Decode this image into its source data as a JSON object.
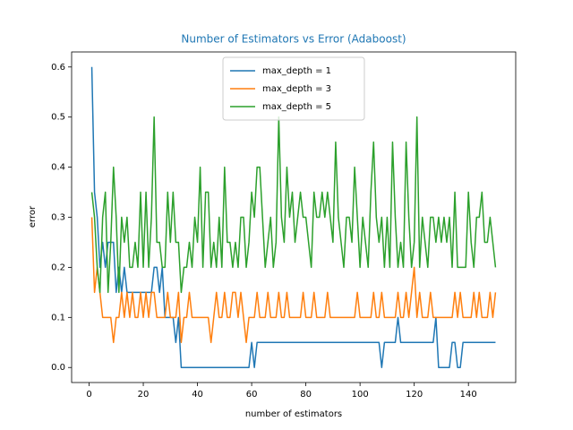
{
  "chart_data": {
    "type": "line",
    "title": "Number of Estimators vs Error (Adaboost)",
    "x_label": "number of estimators",
    "y_label": "error",
    "x": [
      1,
      2,
      3,
      4,
      5,
      6,
      7,
      8,
      9,
      10,
      11,
      12,
      13,
      14,
      15,
      16,
      17,
      18,
      19,
      20,
      21,
      22,
      23,
      24,
      25,
      26,
      27,
      28,
      29,
      30,
      31,
      32,
      33,
      34,
      35,
      36,
      37,
      38,
      39,
      40,
      41,
      42,
      43,
      44,
      45,
      46,
      47,
      48,
      49,
      50,
      51,
      52,
      53,
      54,
      55,
      56,
      57,
      58,
      59,
      60,
      61,
      62,
      63,
      64,
      65,
      66,
      67,
      68,
      69,
      70,
      71,
      72,
      73,
      74,
      75,
      76,
      77,
      78,
      79,
      80,
      81,
      82,
      83,
      84,
      85,
      86,
      87,
      88,
      89,
      90,
      91,
      92,
      93,
      94,
      95,
      96,
      97,
      98,
      99,
      100,
      101,
      102,
      103,
      104,
      105,
      106,
      107,
      108,
      109,
      110,
      111,
      112,
      113,
      114,
      115,
      116,
      117,
      118,
      119,
      120,
      121,
      122,
      123,
      124,
      125,
      126,
      127,
      128,
      129,
      130,
      131,
      132,
      133,
      134,
      135,
      136,
      137,
      138,
      139,
      140,
      141,
      142,
      143,
      144,
      145,
      146,
      147,
      148,
      149,
      150
    ],
    "series": [
      {
        "name": "max_depth = 1",
        "color": "#1f77b4",
        "values": [
          0.6,
          0.35,
          0.3,
          0.2,
          0.25,
          0.2,
          0.25,
          0.25,
          0.25,
          0.15,
          0.2,
          0.15,
          0.2,
          0.15,
          0.15,
          0.15,
          0.15,
          0.15,
          0.15,
          0.15,
          0.15,
          0.15,
          0.15,
          0.2,
          0.2,
          0.15,
          0.2,
          0.1,
          0.1,
          0.1,
          0.1,
          0.05,
          0.1,
          0,
          0,
          0,
          0,
          0,
          0,
          0,
          0,
          0,
          0,
          0,
          0,
          0,
          0,
          0,
          0,
          0,
          0,
          0,
          0,
          0,
          0,
          0,
          0,
          0,
          0,
          0.05,
          0,
          0.05,
          0.05,
          0.05,
          0.05,
          0.05,
          0.05,
          0.05,
          0.05,
          0.05,
          0.05,
          0.05,
          0.05,
          0.05,
          0.05,
          0.05,
          0.05,
          0.05,
          0.05,
          0.05,
          0.05,
          0.05,
          0.05,
          0.05,
          0.05,
          0.05,
          0.05,
          0.05,
          0.05,
          0.05,
          0.05,
          0.05,
          0.05,
          0.05,
          0.05,
          0.05,
          0.05,
          0.05,
          0.05,
          0.05,
          0.05,
          0.05,
          0.05,
          0.05,
          0.05,
          0.05,
          0.05,
          0,
          0.05,
          0.05,
          0.05,
          0.05,
          0.05,
          0.1,
          0.05,
          0.05,
          0.05,
          0.05,
          0.05,
          0.05,
          0.05,
          0.05,
          0.05,
          0.05,
          0.05,
          0.05,
          0.05,
          0.1,
          0,
          0,
          0,
          0,
          0,
          0.05,
          0.05,
          0,
          0,
          0.05,
          0.05,
          0.05,
          0.05,
          0.05,
          0.05,
          0.05,
          0.05,
          0.05,
          0.05,
          0.05,
          0.05,
          0.05
        ]
      },
      {
        "name": "max_depth = 3",
        "color": "#ff7f0e",
        "values": [
          0.3,
          0.15,
          0.2,
          0.15,
          0.1,
          0.1,
          0.1,
          0.1,
          0.05,
          0.1,
          0.1,
          0.15,
          0.1,
          0.15,
          0.1,
          0.15,
          0.1,
          0.1,
          0.15,
          0.1,
          0.15,
          0.1,
          0.15,
          0.15,
          0.1,
          0.1,
          0.1,
          0.1,
          0.15,
          0.1,
          0.1,
          0.1,
          0.15,
          0.05,
          0.1,
          0.1,
          0.15,
          0.1,
          0.1,
          0.1,
          0.1,
          0.1,
          0.1,
          0.1,
          0.05,
          0.1,
          0.15,
          0.1,
          0.1,
          0.15,
          0.1,
          0.1,
          0.15,
          0.15,
          0.1,
          0.15,
          0.1,
          0.05,
          0.1,
          0.1,
          0.1,
          0.15,
          0.1,
          0.1,
          0.1,
          0.15,
          0.1,
          0.1,
          0.1,
          0.15,
          0.1,
          0.1,
          0.15,
          0.1,
          0.1,
          0.1,
          0.1,
          0.1,
          0.15,
          0.1,
          0.1,
          0.1,
          0.15,
          0.1,
          0.1,
          0.1,
          0.1,
          0.15,
          0.1,
          0.1,
          0.1,
          0.1,
          0.1,
          0.1,
          0.1,
          0.1,
          0.1,
          0.1,
          0.15,
          0.1,
          0.1,
          0.1,
          0.1,
          0.1,
          0.15,
          0.1,
          0.1,
          0.15,
          0.1,
          0.1,
          0.1,
          0.1,
          0.1,
          0.15,
          0.1,
          0.1,
          0.15,
          0.1,
          0.15,
          0.2,
          0.1,
          0.15,
          0.1,
          0.1,
          0.1,
          0.15,
          0.1,
          0.1,
          0.1,
          0.1,
          0.1,
          0.1,
          0.1,
          0.1,
          0.15,
          0.1,
          0.15,
          0.1,
          0.1,
          0.1,
          0.1,
          0.15,
          0.1,
          0.15,
          0.1,
          0.1,
          0.1,
          0.15,
          0.1,
          0.15
        ]
      },
      {
        "name": "max_depth = 5",
        "color": "#2ca02c",
        "values": [
          0.35,
          0.3,
          0.2,
          0.15,
          0.3,
          0.35,
          0.15,
          0.25,
          0.4,
          0.3,
          0.15,
          0.3,
          0.25,
          0.3,
          0.2,
          0.2,
          0.25,
          0.2,
          0.35,
          0.2,
          0.35,
          0.2,
          0.3,
          0.5,
          0.25,
          0.25,
          0.2,
          0.2,
          0.35,
          0.25,
          0.35,
          0.25,
          0.25,
          0.15,
          0.2,
          0.2,
          0.25,
          0.2,
          0.3,
          0.25,
          0.4,
          0.2,
          0.35,
          0.35,
          0.2,
          0.25,
          0.2,
          0.3,
          0.2,
          0.4,
          0.25,
          0.25,
          0.2,
          0.25,
          0.2,
          0.3,
          0.3,
          0.2,
          0.25,
          0.35,
          0.3,
          0.4,
          0.4,
          0.3,
          0.2,
          0.25,
          0.3,
          0.2,
          0.25,
          0.5,
          0.3,
          0.25,
          0.4,
          0.3,
          0.35,
          0.25,
          0.3,
          0.35,
          0.3,
          0.3,
          0.25,
          0.2,
          0.35,
          0.3,
          0.3,
          0.35,
          0.3,
          0.35,
          0.3,
          0.25,
          0.45,
          0.3,
          0.25,
          0.2,
          0.3,
          0.3,
          0.25,
          0.4,
          0.3,
          0.2,
          0.3,
          0.25,
          0.2,
          0.35,
          0.45,
          0.3,
          0.25,
          0.3,
          0.2,
          0.3,
          0.2,
          0.45,
          0.3,
          0.2,
          0.25,
          0.2,
          0.45,
          0.3,
          0.2,
          0.25,
          0.5,
          0.2,
          0.3,
          0.25,
          0.2,
          0.3,
          0.3,
          0.25,
          0.3,
          0.25,
          0.3,
          0.25,
          0.3,
          0.2,
          0.35,
          0.2,
          0.2,
          0.2,
          0.2,
          0.35,
          0.25,
          0.2,
          0.3,
          0.3,
          0.35,
          0.25,
          0.25,
          0.3,
          0.25,
          0.2
        ]
      }
    ],
    "xlim": [
      -6.45,
      157.45
    ],
    "ylim": [
      -0.03,
      0.63
    ],
    "xticks": [
      0,
      20,
      40,
      60,
      80,
      100,
      120,
      140
    ],
    "yticks": [
      {
        "value": 0,
        "label": "0.0"
      },
      {
        "value": 0.1,
        "label": "0.1"
      },
      {
        "value": 0.2,
        "label": "0.2"
      },
      {
        "value": 0.3,
        "label": "0.3"
      },
      {
        "value": 0.4,
        "label": "0.4"
      },
      {
        "value": 0.5,
        "label": "0.5"
      },
      {
        "value": 0.6,
        "label": "0.6"
      }
    ],
    "grid": false,
    "legend": "upper center"
  }
}
